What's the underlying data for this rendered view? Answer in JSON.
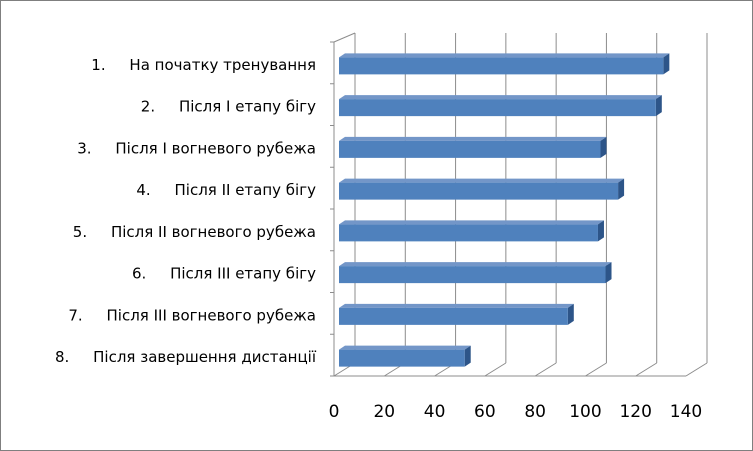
{
  "chart_data": {
    "type": "bar",
    "orientation": "horizontal",
    "style": "3d",
    "title": "",
    "xlabel": "",
    "ylabel": "",
    "categories": [
      "1.     На початку тренування",
      "2.     Після І етапу бігу",
      "3.     Після І вогневого рубежа",
      "4.     Після ІІ етапу бігу",
      "5.     Після ІІ вогневого рубежа",
      "6.     Після ІІІ етапу бігу",
      "7.     Після ІІІ вогневого рубежа",
      "8.     Після завершення дистанції"
    ],
    "values": [
      129,
      126,
      104,
      111,
      103,
      106,
      91,
      50
    ],
    "xlim": [
      0,
      140
    ],
    "xticks": [
      "0",
      "20",
      "40",
      "60",
      "80",
      "100",
      "120",
      "140"
    ],
    "grid": "vertical",
    "legend": "none",
    "colors": {
      "bar_face": "#4f81bd",
      "bar_top": "#7396c8",
      "bar_side": "#2d5589",
      "grid": "#8c8c8c",
      "axis": "#8c8c8c",
      "frame": "#7f7f7f"
    }
  }
}
